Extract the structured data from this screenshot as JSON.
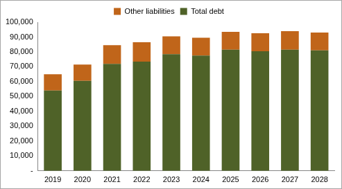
{
  "chart_data": {
    "type": "bar",
    "stacked": true,
    "categories": [
      "2019",
      "2020",
      "2021",
      "2022",
      "2023",
      "2024",
      "2025",
      "2026",
      "2027",
      "2028"
    ],
    "series": [
      {
        "name": "Total debt",
        "color": "#4f6228",
        "values": [
          54000,
          60500,
          72000,
          73500,
          78500,
          77500,
          81500,
          80500,
          81500,
          81000
        ]
      },
      {
        "name": "Other liabilities",
        "color": "#c0651a",
        "values": [
          11000,
          11000,
          12500,
          13000,
          12000,
          12000,
          12000,
          12000,
          12500,
          12000
        ]
      }
    ],
    "ylim": [
      0,
      100000
    ],
    "yticks": [
      {
        "value": 0,
        "label": "-"
      },
      {
        "value": 10000,
        "label": "10,000"
      },
      {
        "value": 20000,
        "label": "20,000"
      },
      {
        "value": 30000,
        "label": "30,000"
      },
      {
        "value": 40000,
        "label": "40,000"
      },
      {
        "value": 50000,
        "label": "50,000"
      },
      {
        "value": 60000,
        "label": "60,000"
      },
      {
        "value": 70000,
        "label": "70,000"
      },
      {
        "value": 80000,
        "label": "80,000"
      },
      {
        "value": 90000,
        "label": "90,000"
      },
      {
        "value": 100000,
        "label": "100,000"
      }
    ],
    "grid": false,
    "legend": "top"
  }
}
